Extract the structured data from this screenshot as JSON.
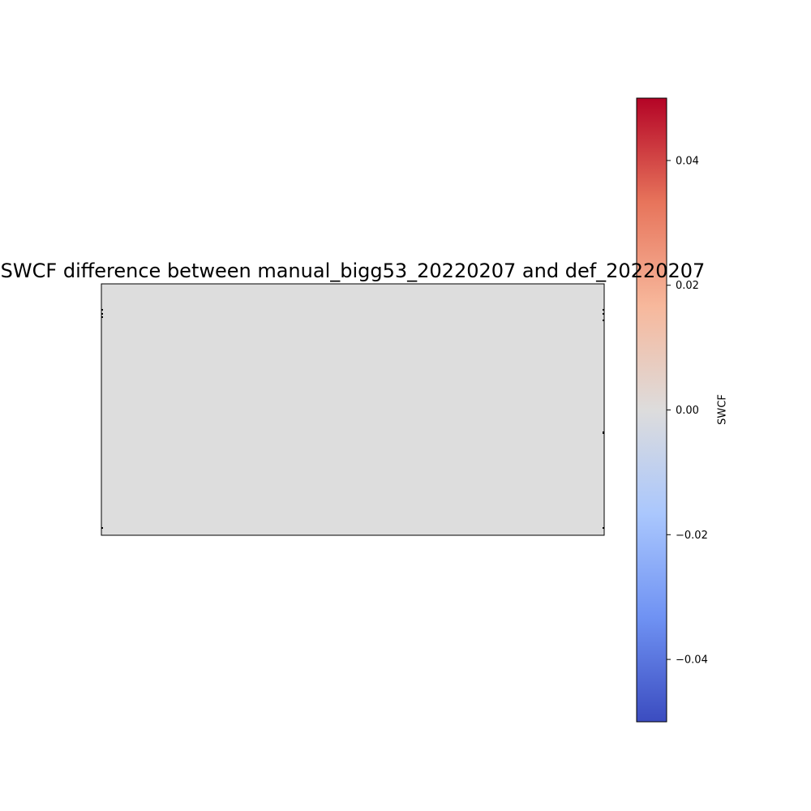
{
  "chart_data": {
    "type": "heatmap",
    "title": "SWCF difference between manual_bigg53_20220207 and def_20220207",
    "field_value": 0.0,
    "field_color": "#dddddd",
    "colorbar": {
      "label": "SWCF",
      "vmin": -0.05,
      "vmax": 0.05,
      "colormap": "coolwarm",
      "stops": [
        "#3b4cc0",
        "#6f92f3",
        "#aac7fd",
        "#dddcdc",
        "#f7b89c",
        "#e7745b",
        "#b40426"
      ],
      "ticks": [
        -0.04,
        -0.02,
        0.0,
        0.02,
        0.04
      ],
      "tick_labels": [
        "−0.04",
        "−0.02",
        "0.00",
        "0.02",
        "0.04"
      ]
    }
  }
}
